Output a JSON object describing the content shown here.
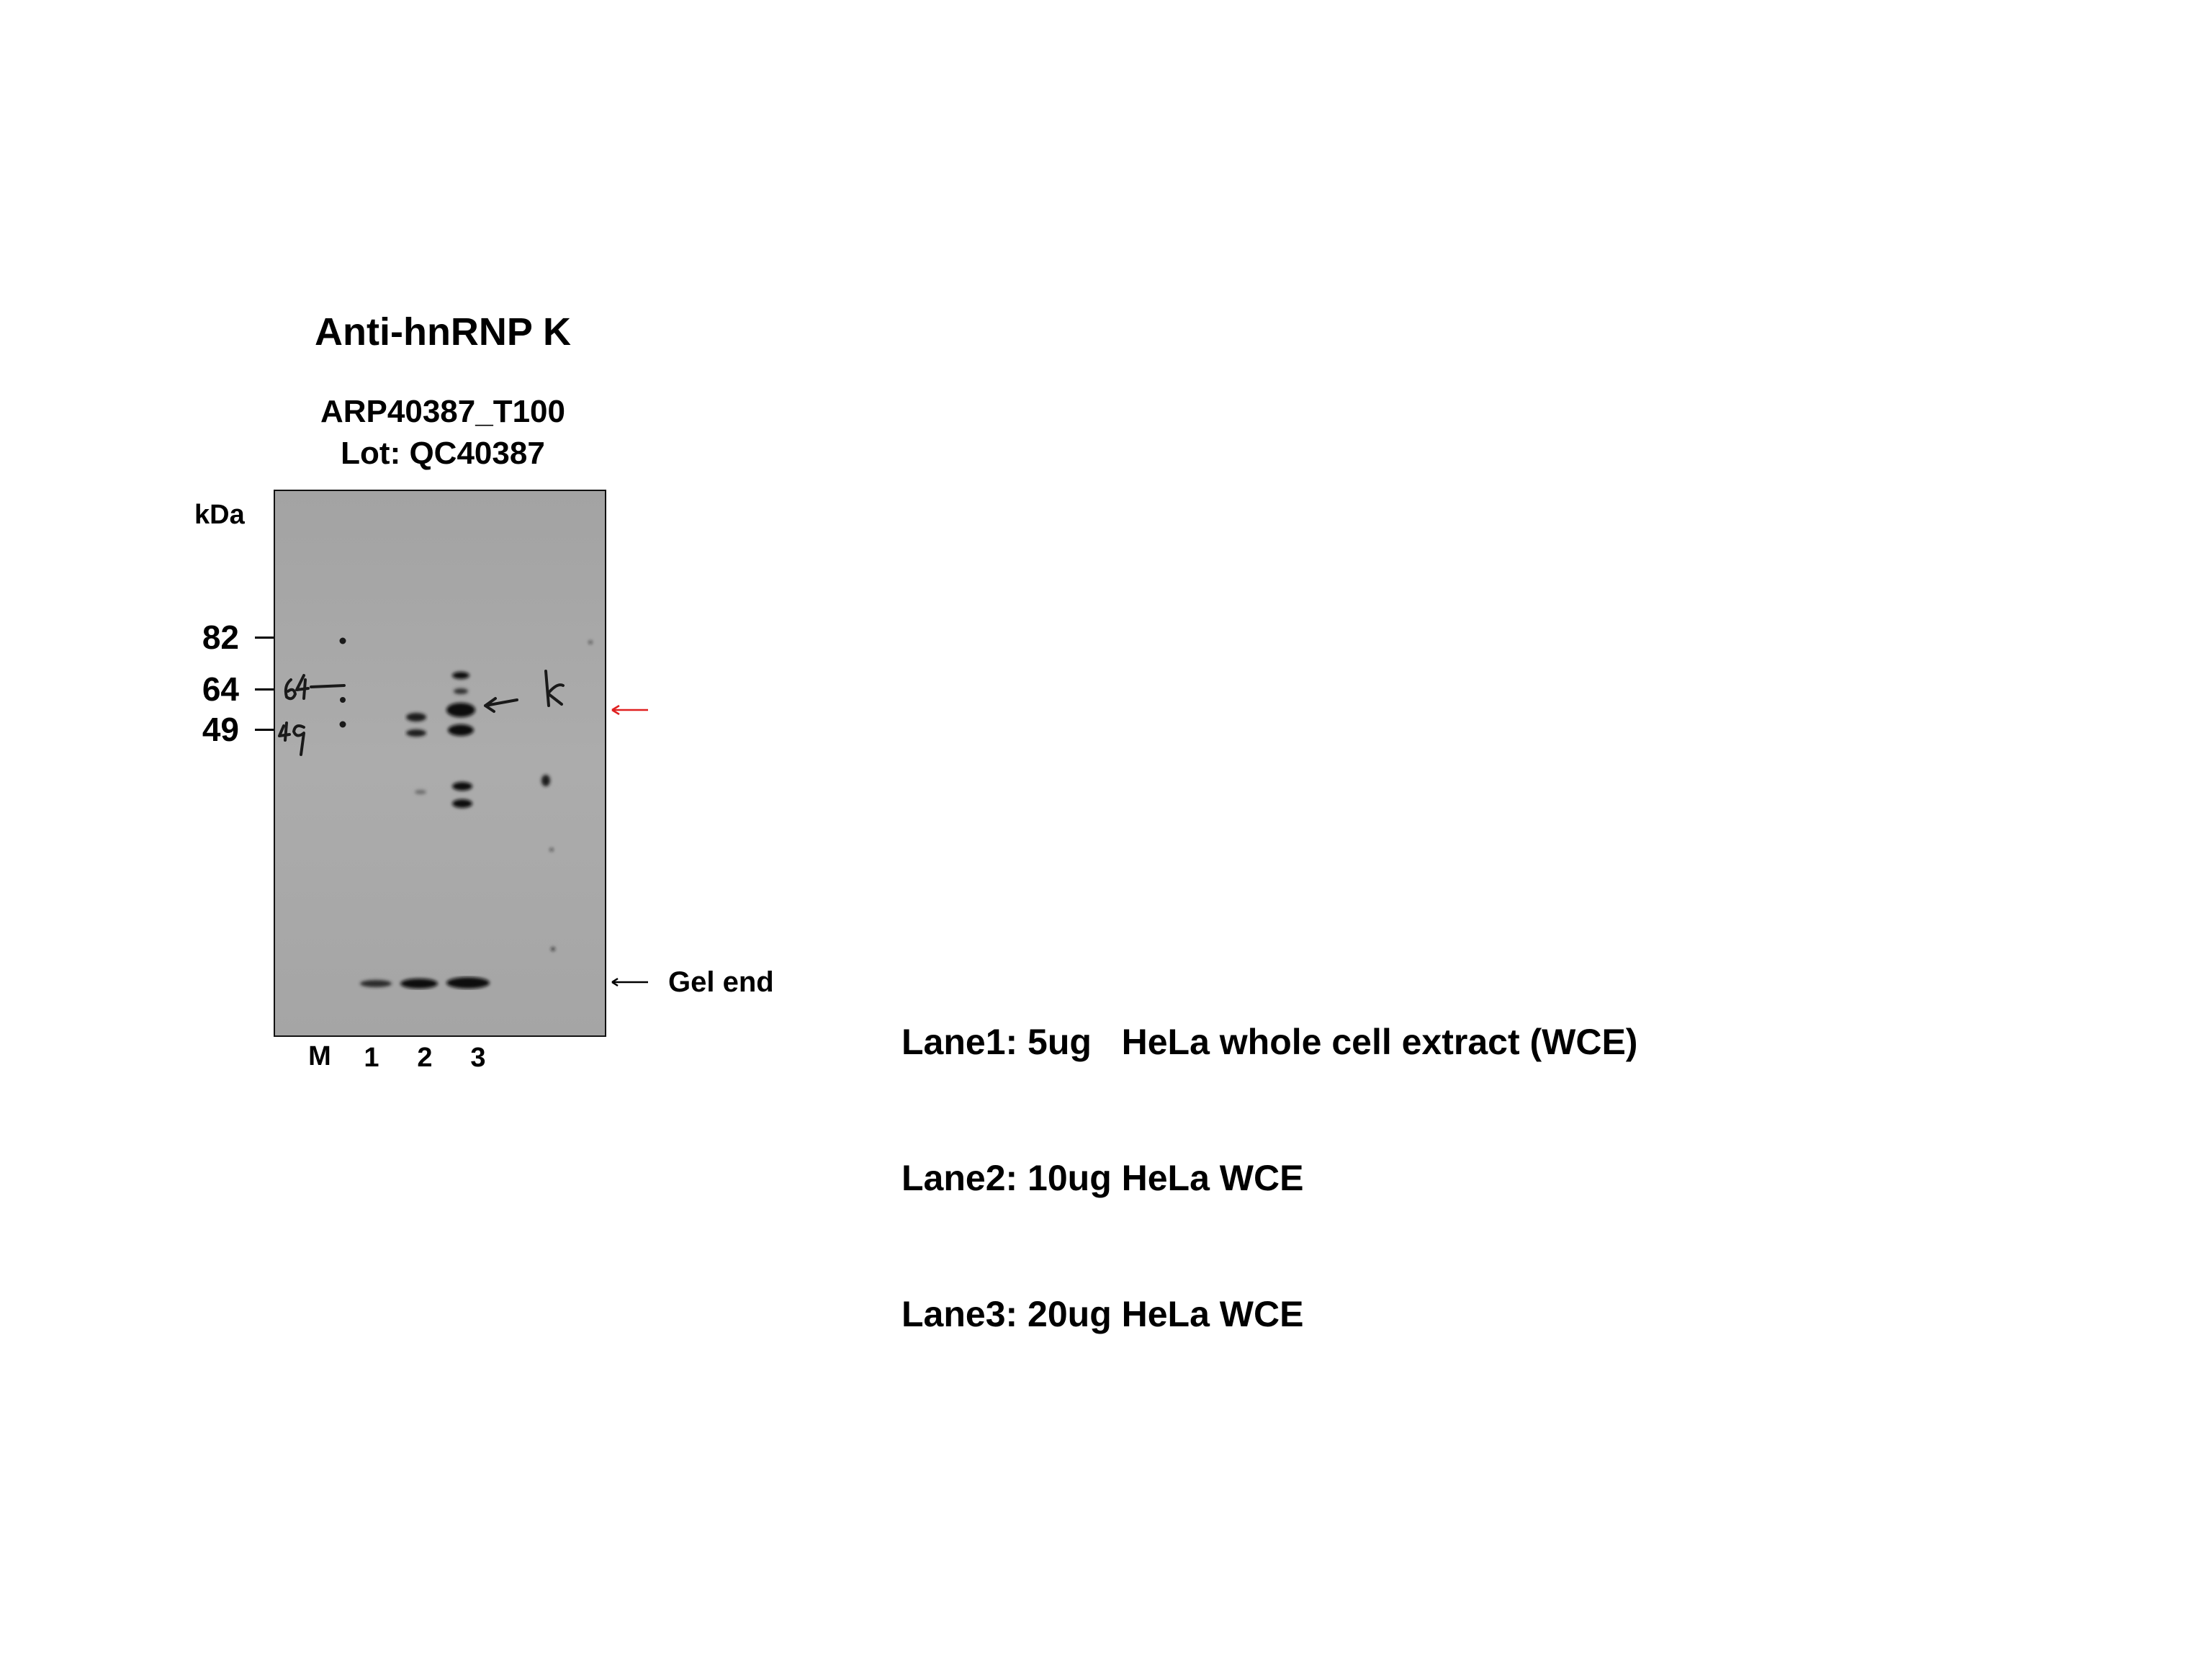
{
  "title": "Anti-hnRNP K",
  "catalog": "ARP40387_T100",
  "lot": "Lot: QC40387",
  "kda_label": "kDa",
  "markers": [
    "82",
    "64",
    "49"
  ],
  "handwritten_marks": [
    "64",
    "49",
    "k"
  ],
  "lanes": [
    "M",
    "1",
    "2",
    "3"
  ],
  "gel_end_label": "Gel end",
  "legend": [
    "Lane1: 5ug   HeLa whole cell extract (WCE)",
    "Lane2: 10ug HeLa WCE",
    "Lane3: 20ug HeLa WCE"
  ],
  "colors": {
    "membrane": "#a8a8a8",
    "band": "#111111",
    "target_arrow": "#e02020"
  }
}
